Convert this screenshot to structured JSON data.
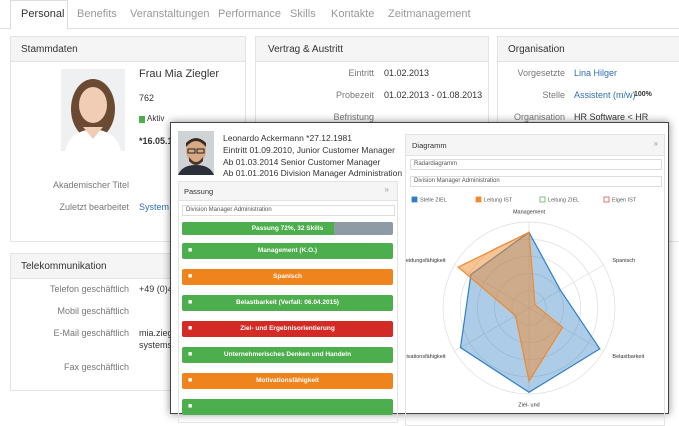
{
  "tabs": [
    "Personal",
    "Benefits",
    "Veranstaltungen",
    "Performance",
    "Skills",
    "Kontakte",
    "Zeitmanagement"
  ],
  "stammdaten": {
    "title": "Stammdaten",
    "name": "Frau Mia Ziegler",
    "number": "762",
    "status": "Aktiv",
    "birth": "*16.05.1",
    "title_label": "Akademischer Titel",
    "edited_label": "Zuletzt bearbeitet",
    "edited_value": "System"
  },
  "vertrag": {
    "title": "Vertrag & Austritt",
    "rows": [
      [
        "Eintritt",
        "01.02.2013"
      ],
      [
        "Probezeit",
        "01.02.2013 - 01.08.2013"
      ],
      [
        "Befristung"
      ]
    ]
  },
  "organisation": {
    "title": "Organisation",
    "supervisor_label": "Vorgesetzte",
    "supervisor": "Lina Hilger",
    "position_label": "Stelle",
    "position": "Assistent (m/w)",
    "position_share": "100%",
    "org_label": "Organisation",
    "org": "HR Software < HR"
  },
  "telekom": {
    "title": "Telekommunikation",
    "phone_label": "Telefon geschäftlich",
    "phone": "+49 (0)4",
    "mobile_label": "Mobil geschäftlich",
    "email_label": "E-Mail geschäftlich",
    "email_1": "mia.ziegl",
    "email_2": "systems",
    "fax_label": "Fax geschäftlich"
  },
  "profile": {
    "lines": [
      "Leonardo Ackermann *27.12.1981",
      "Eintritt 01.09.2010, Junior Customer Manager",
      "Ab 01.03.2014 Senior Customer Manager",
      "Ab 01.01.2016 Division Manager Administration"
    ]
  },
  "passung": {
    "title": "Passung",
    "select": "Division Manager Administration",
    "progress": {
      "label": "Passung 72%, 32 Skills",
      "value": 72
    },
    "skills": [
      {
        "label": "Management (K.O.)",
        "color": "#4cae4c"
      },
      {
        "label": "Spanisch",
        "color": "#f0841c"
      },
      {
        "label": "Belastbarkeit (Verfall: 06.04.2015)",
        "color": "#4cae4c"
      },
      {
        "label": "Ziel- und Ergebnisorientierung",
        "color": "#d42a26"
      },
      {
        "label": "Unternehmerisches Denken und Handeln",
        "color": "#4cae4c"
      },
      {
        "label": "Motivationsfähigkeit",
        "color": "#f0841c"
      },
      {
        "color": "#4cae4c"
      }
    ]
  },
  "diagramm": {
    "title": "Diagramm",
    "select_type": "Radardiagramm",
    "select_position": "Division Manager Administration",
    "chart_data": {
      "type": "radar",
      "rlim": [
        0,
        100
      ],
      "categories": [
        "Management",
        "Spanisch",
        "Belastbarkeit",
        "Ziel- und",
        "Motivationsfähigkeit",
        "Entscheidungsfähigkeit"
      ],
      "series": [
        {
          "name": "Stelle ZIEL",
          "color": "#2f7fc4",
          "values": [
            88,
            42,
            95,
            98,
            92,
            78
          ]
        },
        {
          "name": "Leitung IST",
          "color": "#ef8a2e",
          "values": [
            88,
            8,
            45,
            85,
            18,
            95
          ]
        },
        {
          "name": "Leitung ZIEL",
          "color": "#5cb85c"
        },
        {
          "name": "Eigen IST",
          "color": "#d9534f"
        }
      ]
    }
  }
}
